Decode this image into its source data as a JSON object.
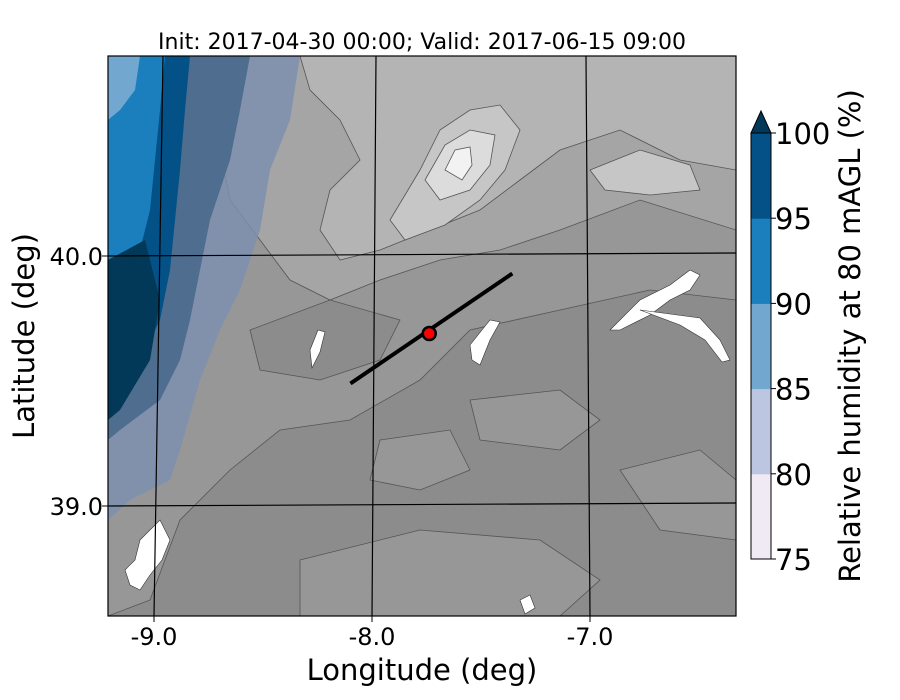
{
  "title": "Init: 2017-04-30 00:00; Valid: 2017-06-15 09:00",
  "x_axis": {
    "label": "Longitude (deg)",
    "ticks": [
      {
        "value": -9.0,
        "label": "-9.0"
      },
      {
        "value": -8.0,
        "label": "-8.0"
      },
      {
        "value": -7.0,
        "label": "-7.0"
      }
    ]
  },
  "y_axis": {
    "label": "Latitude (deg)",
    "ticks": [
      {
        "value": 40.0,
        "label": "40.0"
      },
      {
        "value": 39.0,
        "label": "39.0"
      }
    ]
  },
  "colorbar": {
    "label": "Relative humidity at 80 mAGL (%)",
    "levels": [
      {
        "from": 75,
        "to": 80,
        "color": "#efeaf4"
      },
      {
        "from": 80,
        "to": 85,
        "color": "#bcc6e0"
      },
      {
        "from": 85,
        "to": 90,
        "color": "#72a8d0"
      },
      {
        "from": 90,
        "to": 95,
        "color": "#1c7fbd"
      },
      {
        "from": 95,
        "to": 100,
        "color": "#035186"
      }
    ],
    "extend_color": "#023858",
    "tick_labels": [
      "75",
      "80",
      "85",
      "90",
      "95",
      "100"
    ]
  },
  "map": {
    "terrain_colors": [
      "#8c8c8c",
      "#979797",
      "#a5a5a5",
      "#b4b4b4",
      "#c6c6c6",
      "#dcdcdc",
      "#f2f2f2"
    ],
    "water_color": "#ffffff",
    "transect": {
      "start": {
        "lon": -8.12,
        "lat": 39.49
      },
      "end": {
        "lon": -7.36,
        "lat": 39.93
      }
    },
    "site_marker": {
      "lon": -7.75,
      "lat": 39.69,
      "color": "#ff0000"
    }
  }
}
